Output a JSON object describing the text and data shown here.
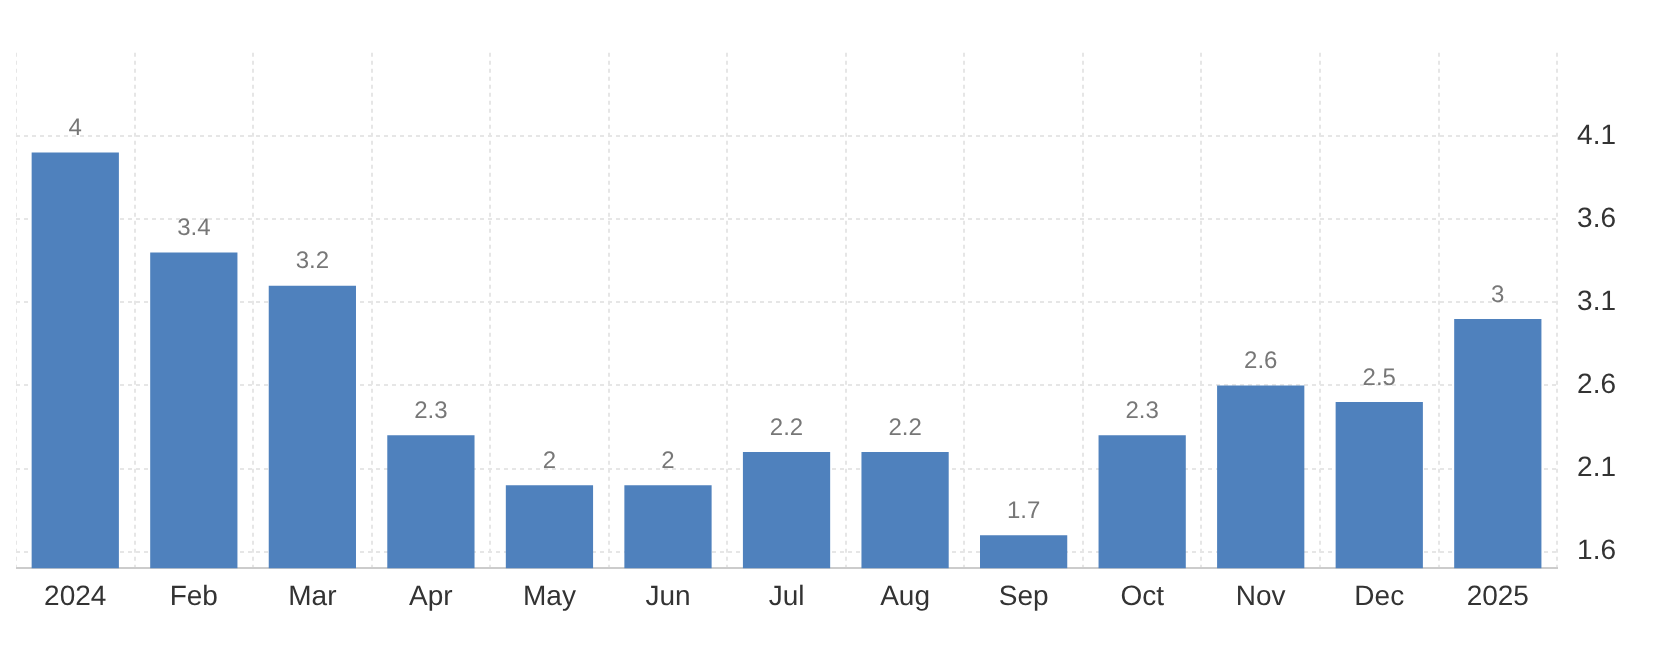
{
  "chart_data": {
    "type": "bar",
    "categories": [
      "2024",
      "Feb",
      "Mar",
      "Apr",
      "May",
      "Jun",
      "Jul",
      "Aug",
      "Sep",
      "Oct",
      "Nov",
      "Dec",
      "2025"
    ],
    "values": [
      4,
      3.4,
      3.2,
      2.3,
      2,
      2,
      2.2,
      2.2,
      1.7,
      2.3,
      2.6,
      2.5,
      3
    ],
    "color": "#4f81bd",
    "ylim": [
      1.5,
      4.6
    ],
    "yticks": [
      1.6,
      2.1,
      2.6,
      3.1,
      3.6,
      4.1
    ],
    "grid": true,
    "data_labels": true
  }
}
